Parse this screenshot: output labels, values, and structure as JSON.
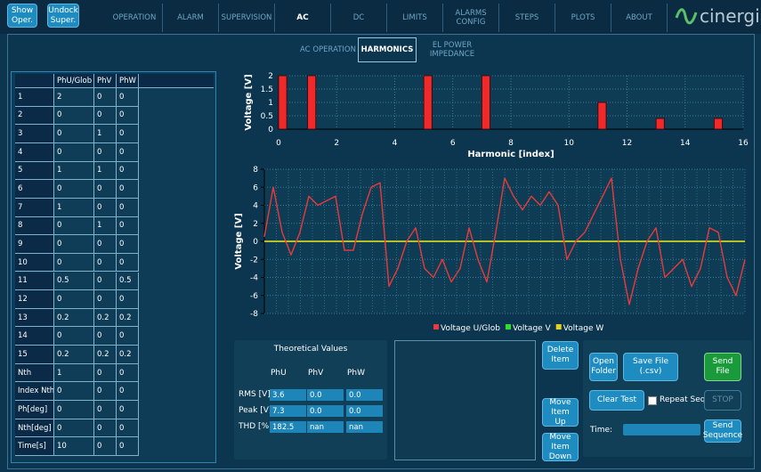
{
  "header": {
    "buttons": [
      "Show Oper.",
      "Undock Super."
    ],
    "tabs": [
      "OPERATION",
      "ALARM",
      "SUPERVISION",
      "AC",
      "DC",
      "LIMITS",
      "ALARMS CONFIG",
      "STEPS",
      "PLOTS",
      "ABOUT"
    ],
    "logo": "cinergia"
  },
  "subtabs": [
    "AC OPERATION",
    "HARMONICS",
    "EL POWER IMPEDANCE"
  ],
  "table": {
    "columns": [
      "PhU/Glob",
      "PhV",
      "PhW"
    ],
    "rows": [
      [
        "1",
        "2",
        "0",
        "0"
      ],
      [
        "2",
        "0",
        "0",
        "0"
      ],
      [
        "3",
        "0",
        "1",
        "0"
      ],
      [
        "4",
        "0",
        "0",
        "0"
      ],
      [
        "5",
        "1",
        "1",
        "0"
      ],
      [
        "6",
        "0",
        "0",
        "0"
      ],
      [
        "7",
        "1",
        "0",
        "0"
      ],
      [
        "8",
        "0",
        "1",
        "0"
      ],
      [
        "9",
        "0",
        "0",
        "0"
      ],
      [
        "10",
        "0",
        "0",
        "0"
      ],
      [
        "11",
        "0.5",
        "0",
        "0.5"
      ],
      [
        "12",
        "0",
        "0",
        "0"
      ],
      [
        "13",
        "0.2",
        "0.2",
        "0.2"
      ],
      [
        "14",
        "0",
        "0",
        "0"
      ],
      [
        "15",
        "0.2",
        "0.2",
        "0.2"
      ],
      [
        "Nth",
        "1",
        "0",
        "0"
      ],
      [
        "Index Nth",
        "0",
        "0",
        "0"
      ],
      [
        "Ph[deg]",
        "0",
        "0",
        "0"
      ],
      [
        "Nth[deg]",
        "0",
        "0",
        "0"
      ],
      [
        "Time[s]",
        "10",
        "0",
        "0"
      ]
    ]
  },
  "chart_data": [
    {
      "type": "bar",
      "ylabel": "Voltage [V]",
      "xlabel": "Harmonic [index]",
      "x": [
        0,
        1,
        5,
        7,
        11,
        13,
        15
      ],
      "values": [
        2,
        2,
        2,
        2,
        1,
        0.4,
        0.4
      ],
      "color": "#f02a2a",
      "xlim": [
        0,
        16
      ],
      "ylim": [
        0,
        2
      ],
      "xticks": [
        0,
        2,
        4,
        6,
        8,
        10,
        12,
        14,
        16
      ],
      "yticks": [
        0,
        0.5,
        1,
        1.5,
        2
      ],
      "grid": true
    },
    {
      "type": "line",
      "ylabel": "Voltage [V]",
      "ylim": [
        -8,
        8
      ],
      "yticks": [
        -8,
        -6,
        -4,
        -2,
        0,
        2,
        4,
        6,
        8
      ],
      "grid": true,
      "legend": "bottom",
      "series": [
        {
          "name": "Voltage U/Glob",
          "color": "#e83a3a",
          "values": [
            0.5,
            6,
            1,
            -1.5,
            1,
            5,
            4,
            4.5,
            5,
            -1,
            -1,
            3,
            6,
            6.5,
            -5,
            -3,
            0,
            1.5,
            -3,
            -4,
            -2,
            -4.5,
            -3,
            1.5,
            -2,
            -4.5,
            1,
            7,
            5,
            3.5,
            5,
            4,
            5.5,
            4,
            -2,
            0,
            1,
            3,
            5,
            7,
            -2,
            -7,
            -3,
            0,
            1.5,
            -4,
            -3,
            -2,
            -5,
            -3,
            1.5,
            1,
            -4,
            -6,
            -2
          ]
        },
        {
          "name": "Voltage V",
          "color": "#2ee02e",
          "values": [
            0,
            0,
            0,
            0,
            0,
            0,
            0,
            0,
            0,
            0,
            0,
            0,
            0,
            0,
            0,
            0,
            0,
            0,
            0,
            0,
            0,
            0,
            0,
            0,
            0,
            0,
            0,
            0,
            0,
            0,
            0,
            0,
            0,
            0,
            0,
            0,
            0,
            0,
            0,
            0,
            0,
            0,
            0,
            0,
            0,
            0,
            0,
            0,
            0,
            0,
            0,
            0,
            0,
            0,
            0
          ]
        },
        {
          "name": "Voltage W",
          "color": "#e8d020",
          "values": [
            0,
            0,
            0,
            0,
            0,
            0,
            0,
            0,
            0,
            0,
            0,
            0,
            0,
            0,
            0,
            0,
            0,
            0,
            0,
            0,
            0,
            0,
            0,
            0,
            0,
            0,
            0,
            0,
            0,
            0,
            0,
            0,
            0,
            0,
            0,
            0,
            0,
            0,
            0,
            0,
            0,
            0,
            0,
            0,
            0,
            0,
            0,
            0,
            0,
            0,
            0,
            0,
            0,
            0,
            0
          ]
        }
      ]
    }
  ],
  "theoretical": {
    "title": "Theoretical Values",
    "columns": [
      "PhU",
      "PhV",
      "PhW"
    ],
    "rows": [
      [
        "RMS [V]",
        "3.6",
        "0.0",
        "0.0"
      ],
      [
        "Peak [V]",
        "7.3",
        "0.0",
        "0.0"
      ],
      [
        "THD [%]",
        "182.5",
        "nan",
        "nan"
      ]
    ]
  },
  "controls": {
    "delete_item": "Delete Item",
    "move_up": "Move Item Up",
    "move_down": "Move Item Down",
    "open_folder": "Open Folder",
    "save_file": "Save File (.csv)",
    "send_file": "Send File",
    "clear_test": "Clear Test",
    "repeat_seq": "Repeat Seq.",
    "stop": "STOP",
    "time_label": "Time:",
    "send_sequence": "Send Sequence"
  }
}
